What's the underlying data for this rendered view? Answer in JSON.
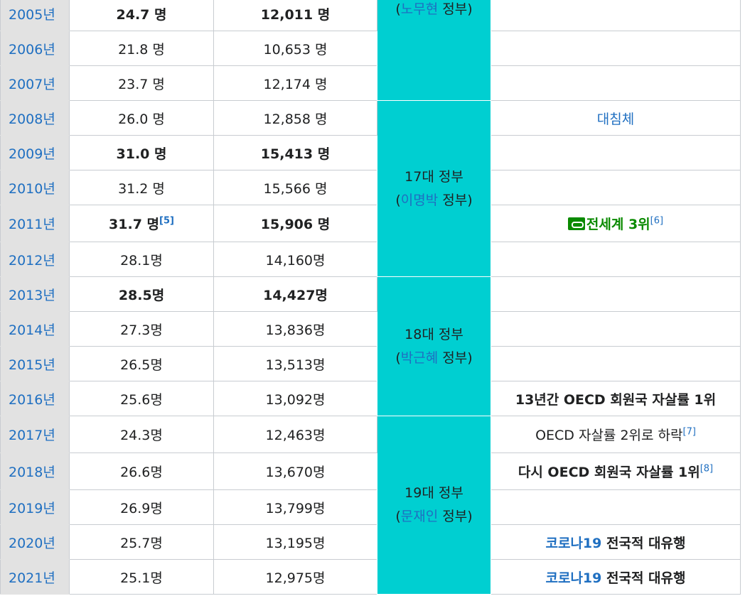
{
  "table": {
    "rows": [
      {
        "year": "2005년",
        "rate": "24.7 명",
        "count": "12,011 명",
        "bold": true,
        "note": []
      },
      {
        "year": "2006년",
        "rate": "21.8 명",
        "count": "10,653 명",
        "bold": false,
        "note": []
      },
      {
        "year": "2007년",
        "rate": "23.7 명",
        "count": "12,174 명",
        "bold": false,
        "note": []
      },
      {
        "year": "2008년",
        "rate": "26.0 명",
        "count": "12,858 명",
        "bold": false,
        "note": [
          {
            "text": "대침체",
            "style": "link"
          }
        ]
      },
      {
        "year": "2009년",
        "rate": "31.0 명",
        "count": "15,413 명",
        "bold": true,
        "note": []
      },
      {
        "year": "2010년",
        "rate": "31.2 명",
        "count": "15,566 명",
        "bold": false,
        "note": []
      },
      {
        "year": "2011년",
        "rate": "31.7 명",
        "rate_ref": "[5]",
        "count": "15,906 명",
        "bold": true,
        "note": [
          {
            "text": "전세계 3위",
            "style": "green"
          },
          {
            "text": "[6]",
            "style": "ref"
          }
        ]
      },
      {
        "year": "2012년",
        "rate": "28.1명",
        "count": "14,160명",
        "bold": false,
        "note": []
      },
      {
        "year": "2013년",
        "rate": "28.5명",
        "count": "14,427명",
        "bold": true,
        "note": []
      },
      {
        "year": "2014년",
        "rate": "27.3명",
        "count": "13,836명",
        "bold": false,
        "note": []
      },
      {
        "year": "2015년",
        "rate": "26.5명",
        "count": "13,513명",
        "bold": false,
        "note": []
      },
      {
        "year": "2016년",
        "rate": "25.6명",
        "count": "13,092명",
        "bold": false,
        "note": [
          {
            "text": "13년간 OECD 회원국 자살률 1위",
            "style": "bold"
          }
        ]
      },
      {
        "year": "2017년",
        "rate": "24.3명",
        "count": "12,463명",
        "bold": false,
        "note": [
          {
            "text": "OECD 자살률 2위로 하락",
            "style": "plain"
          },
          {
            "text": "[7]",
            "style": "ref"
          }
        ]
      },
      {
        "year": "2018년",
        "rate": "26.6명",
        "count": "13,670명",
        "bold": false,
        "note": [
          {
            "text": "다시 OECD 회원국 자살률 1위",
            "style": "bold"
          },
          {
            "text": "[8]",
            "style": "ref"
          }
        ]
      },
      {
        "year": "2019년",
        "rate": "26.9명",
        "count": "13,799명",
        "bold": false,
        "note": []
      },
      {
        "year": "2020년",
        "rate": "25.7명",
        "count": "13,195명",
        "bold": false,
        "note": [
          {
            "text": "코로나19",
            "style": "linkbold"
          },
          {
            "text": " 전국적 대유행",
            "style": "bold"
          }
        ]
      },
      {
        "year": "2021년",
        "rate": "25.1명",
        "count": "12,975명",
        "bold": false,
        "note": [
          {
            "text": "코로나19",
            "style": "linkbold"
          },
          {
            "text": " 전국적 대유행",
            "style": "bold"
          }
        ]
      }
    ],
    "governments": [
      {
        "span": 3,
        "lines": [
          [
            {
              "text": "(",
              "link": false
            },
            {
              "text": "노무현",
              "link": true
            },
            {
              "text": " 정부)",
              "link": false
            }
          ]
        ]
      },
      {
        "span": 5,
        "lines": [
          [
            {
              "text": "17대 정부",
              "link": false
            }
          ],
          [
            {
              "text": "(",
              "link": false
            },
            {
              "text": "이명박",
              "link": true
            },
            {
              "text": " 정부)",
              "link": false
            }
          ]
        ]
      },
      {
        "span": 4,
        "lines": [
          [
            {
              "text": "18대 정부",
              "link": false
            }
          ],
          [
            {
              "text": "(",
              "link": false
            },
            {
              "text": "박근혜",
              "link": true
            },
            {
              "text": " 정부)",
              "link": false
            }
          ]
        ]
      },
      {
        "span": 5,
        "lines": [
          [
            {
              "text": "19대 정부",
              "link": false
            }
          ],
          [
            {
              "text": "(",
              "link": false
            },
            {
              "text": "문재인",
              "link": true
            },
            {
              "text": " 정부)",
              "link": false
            }
          ]
        ]
      }
    ]
  }
}
